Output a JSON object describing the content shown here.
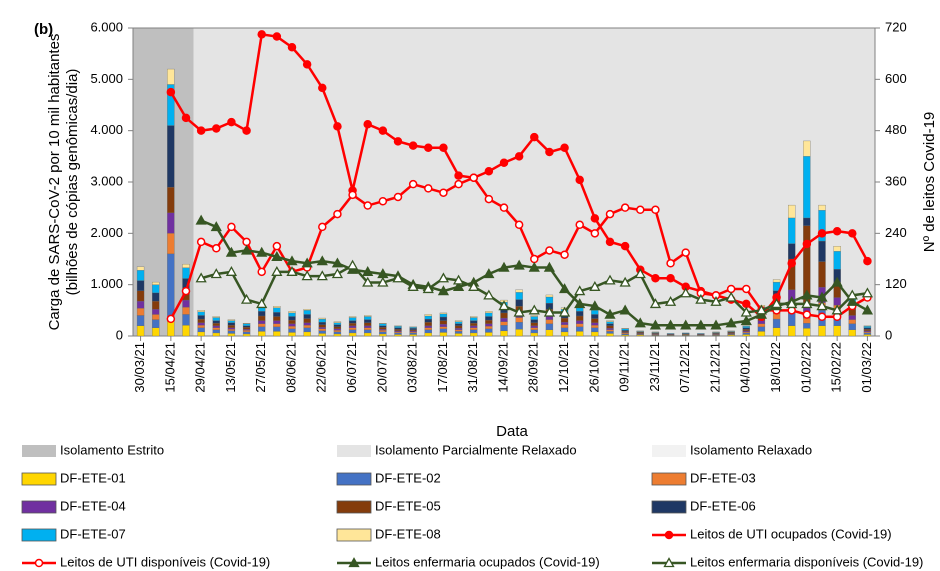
{
  "chart_data": {
    "type": "combo",
    "panel_label": "(b)",
    "x_label": "Data",
    "y_label": [
      "Carga de SARS-CoV-2 por 10 mil habitantes",
      "(bilhões de cópias genômicas/dia)"
    ],
    "y2_label": "Nº de leitos Covid-19",
    "categories": [
      "30/03/21",
      null,
      "15/04/21",
      null,
      "29/04/21",
      null,
      "13/05/21",
      null,
      "27/05/21",
      null,
      "08/06/21",
      null,
      "22/06/21",
      null,
      "06/07/21",
      null,
      "20/07/21",
      null,
      "03/08/21",
      null,
      "17/08/21",
      null,
      "31/08/21",
      null,
      "14/09/21",
      null,
      "28/09/21",
      null,
      "12/10/21",
      null,
      "26/10/21",
      null,
      "09/11/21",
      null,
      "23/11/21",
      null,
      "07/12/21",
      null,
      "21/12/21",
      null,
      "04/01/22",
      null,
      "18/01/22",
      null,
      "01/02/22",
      null,
      "15/02/22",
      null,
      "01/03/22"
    ],
    "ylim": [
      0,
      6000
    ],
    "yticks": [
      0,
      {
        "value": 1000,
        "label": "1.000"
      },
      {
        "value": 2000,
        "label": "2.000"
      },
      {
        "value": 3000,
        "label": "3.000"
      },
      {
        "value": 4000,
        "label": "4.000"
      },
      {
        "value": 5000,
        "label": "5.000"
      },
      {
        "value": 6000,
        "label": "6.000"
      }
    ],
    "y2lim": [
      0,
      720
    ],
    "y2ticks": [
      0,
      120,
      240,
      360,
      480,
      600,
      720
    ],
    "grid": false,
    "regions": [
      {
        "name": "Isolamento Estrito",
        "color": "#bfbfbf",
        "start": "30/03/21"
      },
      {
        "name": "Isolamento Parcialmente Relaxado",
        "color": "#e4e4e4",
        "start": "29/04/21"
      },
      {
        "name": "Isolamento Relaxado",
        "color": "#f2f2f2"
      }
    ],
    "series": [
      {
        "name": "DF-ETE-01",
        "type": "bar",
        "color": "#ffd600",
        "values": [
          200,
          160,
          300,
          210,
          80,
          60,
          50,
          40,
          90,
          90,
          70,
          80,
          50,
          40,
          60,
          60,
          40,
          30,
          30,
          60,
          70,
          50,
          60,
          70,
          100,
          130,
          60,
          120,
          80,
          90,
          80,
          50,
          20,
          20,
          10,
          10,
          10,
          10,
          10,
          20,
          30,
          90,
          160,
          200,
          150,
          200,
          200,
          120,
          30
        ]
      },
      {
        "name": "DF-ETE-02",
        "type": "bar",
        "color": "#4472c4",
        "values": [
          200,
          160,
          1300,
          210,
          80,
          60,
          50,
          40,
          90,
          90,
          70,
          80,
          50,
          40,
          60,
          60,
          40,
          30,
          30,
          60,
          70,
          40,
          60,
          70,
          110,
          140,
          60,
          120,
          80,
          90,
          80,
          40,
          20,
          10,
          10,
          10,
          10,
          10,
          10,
          10,
          30,
          90,
          170,
          300,
          100,
          300,
          250,
          120,
          30
        ]
      },
      {
        "name": "DF-ETE-03",
        "type": "bar",
        "color": "#ed7d31",
        "values": [
          140,
          100,
          400,
          140,
          50,
          40,
          30,
          30,
          60,
          60,
          50,
          50,
          40,
          30,
          40,
          40,
          30,
          20,
          20,
          40,
          40,
          30,
          40,
          50,
          70,
          90,
          40,
          80,
          60,
          60,
          50,
          30,
          20,
          10,
          10,
          0,
          10,
          0,
          10,
          10,
          20,
          60,
          110,
          150,
          100,
          150,
          150,
          80,
          20
        ]
      },
      {
        "name": "DF-ETE-04",
        "type": "bar",
        "color": "#7030a0",
        "values": [
          140,
          100,
          400,
          140,
          50,
          40,
          30,
          20,
          60,
          60,
          50,
          50,
          30,
          30,
          40,
          40,
          20,
          20,
          20,
          40,
          50,
          30,
          40,
          50,
          70,
          90,
          40,
          80,
          50,
          60,
          50,
          30,
          10,
          10,
          10,
          10,
          0,
          10,
          10,
          10,
          20,
          60,
          110,
          250,
          300,
          300,
          150,
          80,
          20
        ]
      },
      {
        "name": "DF-ETE-05",
        "type": "bar",
        "color": "#843c0c",
        "values": [
          200,
          160,
          500,
          210,
          70,
          50,
          50,
          40,
          90,
          80,
          70,
          80,
          50,
          40,
          50,
          60,
          40,
          30,
          20,
          70,
          70,
          50,
          50,
          70,
          100,
          130,
          60,
          120,
          80,
          90,
          80,
          50,
          20,
          20,
          10,
          10,
          10,
          10,
          10,
          20,
          30,
          90,
          160,
          600,
          1500,
          500,
          300,
          120,
          30
        ]
      },
      {
        "name": "DF-ETE-06",
        "type": "bar",
        "color": "#1f3864",
        "values": [
          200,
          160,
          1200,
          210,
          70,
          50,
          50,
          30,
          90,
          80,
          70,
          80,
          50,
          40,
          50,
          60,
          30,
          30,
          30,
          60,
          70,
          40,
          50,
          70,
          100,
          130,
          60,
          120,
          80,
          90,
          80,
          40,
          20,
          10,
          10,
          0,
          10,
          0,
          10,
          10,
          30,
          90,
          170,
          300,
          150,
          400,
          250,
          120,
          30
        ]
      },
      {
        "name": "DF-ETE-07",
        "type": "bar",
        "color": "#00b0f0",
        "values": [
          200,
          160,
          800,
          210,
          70,
          60,
          40,
          40,
          90,
          90,
          70,
          80,
          60,
          40,
          60,
          60,
          40,
          30,
          20,
          60,
          60,
          40,
          60,
          70,
          110,
          140,
          60,
          120,
          90,
          90,
          80,
          40,
          30,
          10,
          10,
          10,
          10,
          10,
          10,
          10,
          30,
          90,
          170,
          500,
          1200,
          600,
          350,
          120,
          30
        ]
      },
      {
        "name": "DF-ETE-08",
        "type": "bar",
        "color": "#ffe699",
        "values": [
          70,
          50,
          300,
          70,
          30,
          20,
          20,
          10,
          30,
          30,
          30,
          20,
          20,
          20,
          20,
          20,
          10,
          10,
          10,
          30,
          20,
          20,
          20,
          30,
          40,
          50,
          20,
          40,
          30,
          30,
          20,
          20,
          10,
          10,
          10,
          0,
          0,
          0,
          10,
          10,
          10,
          30,
          50,
          250,
          300,
          100,
          100,
          40,
          10
        ]
      },
      {
        "name": "Leitos de UTI ocupados (Covid-19)",
        "type": "line",
        "axis": "y2",
        "color": "#ff0000",
        "marker": "circle",
        "marker_fill": "filled",
        "values": [
          null,
          null,
          570,
          510,
          480,
          485,
          500,
          480,
          705,
          700,
          675,
          635,
          580,
          490,
          340,
          495,
          480,
          455,
          445,
          440,
          440,
          375,
          370,
          385,
          405,
          420,
          465,
          430,
          440,
          365,
          275,
          220,
          210,
          155,
          135,
          135,
          115,
          105,
          95,
          85,
          75,
          45,
          90,
          170,
          215,
          240,
          245,
          240,
          175
        ]
      },
      {
        "name": "Leitos de UTI disponíveis (Covid-19)",
        "type": "line",
        "axis": "y2",
        "color": "#ff0000",
        "marker": "circle",
        "marker_fill": "open",
        "values": [
          null,
          null,
          40,
          105,
          220,
          205,
          255,
          220,
          150,
          210,
          150,
          160,
          255,
          285,
          330,
          305,
          315,
          325,
          355,
          345,
          335,
          355,
          370,
          320,
          300,
          260,
          180,
          200,
          190,
          260,
          240,
          285,
          300,
          295,
          295,
          170,
          195,
          100,
          95,
          110,
          110,
          60,
          60,
          60,
          50,
          45,
          45,
          70,
          90
        ]
      },
      {
        "name": "Leitos enfermaria ocupados (Covid-19)",
        "type": "line",
        "axis": "y2",
        "color": "#375623",
        "marker": "triangle",
        "marker_fill": "filled",
        "values": [
          null,
          null,
          null,
          null,
          270,
          255,
          195,
          200,
          195,
          185,
          175,
          170,
          175,
          170,
          155,
          150,
          145,
          140,
          120,
          115,
          105,
          115,
          125,
          145,
          160,
          165,
          160,
          160,
          110,
          75,
          70,
          50,
          60,
          30,
          25,
          25,
          25,
          25,
          25,
          30,
          35,
          50,
          70,
          80,
          95,
          90,
          125,
          80,
          60
        ]
      },
      {
        "name": "Leitos enfermaria disponíveis (Covid-19)",
        "type": "line",
        "axis": "y2",
        "color": "#375623",
        "marker": "triangle",
        "marker_fill": "open",
        "values": [
          null,
          null,
          null,
          null,
          135,
          145,
          150,
          85,
          75,
          150,
          150,
          140,
          140,
          145,
          165,
          125,
          125,
          135,
          115,
          110,
          135,
          130,
          115,
          95,
          70,
          55,
          60,
          55,
          55,
          105,
          115,
          130,
          125,
          145,
          75,
          80,
          100,
          85,
          80,
          90,
          55,
          60,
          75,
          75,
          75,
          70,
          60,
          95,
          100
        ]
      }
    ]
  }
}
